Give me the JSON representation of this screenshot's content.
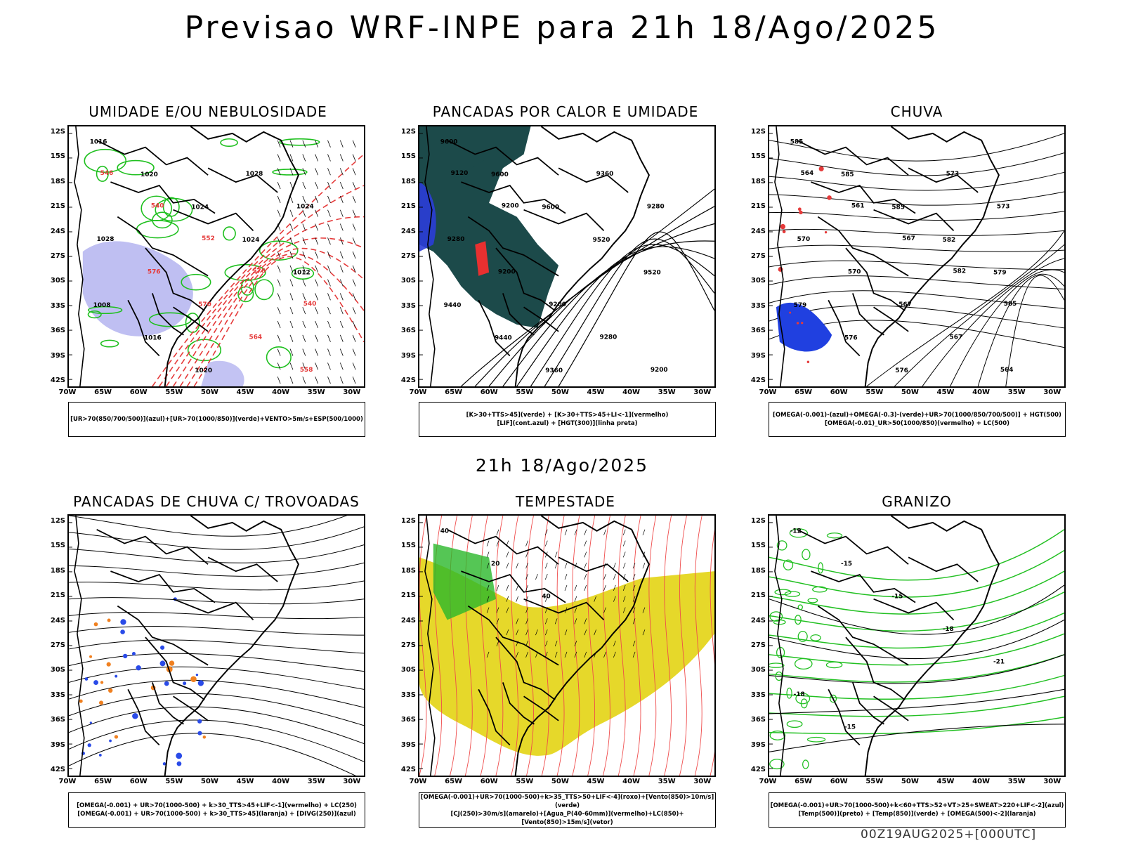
{
  "header": {
    "title": "Previsao WRF-INPE  para 21h 18/Ago/2025",
    "middle_time": "21h 18/Ago/2025",
    "run_info": "00Z19AUG2025+[000UTC]"
  },
  "axes": {
    "lat_ticks": [
      "12S",
      "15S",
      "18S",
      "21S",
      "24S",
      "27S",
      "30S",
      "33S",
      "36S",
      "39S",
      "42S"
    ],
    "lon_ticks": [
      "70W",
      "65W",
      "60W",
      "55W",
      "50W",
      "45W",
      "40W",
      "35W",
      "30W"
    ]
  },
  "panels": [
    {
      "title": "UMIDADE E/OU NEBULOSIDADE",
      "legend": [
        "[UR>70(850/700/500)](azul)+[UR>70(1000/850)](verde)+VENTO>5m/s+ESP(500/1000)"
      ],
      "contour_labels": [
        "1016",
        "1020",
        "1024",
        "1024",
        "1012",
        "1008",
        "1016",
        "1020",
        "1028",
        "1024",
        "1028",
        "576",
        "570",
        "564",
        "558",
        "546",
        "540",
        "552",
        "576",
        "540"
      ],
      "colors": {
        "humidity_upper": "#b4b4f0",
        "humidity_lower": "#1fc01f",
        "thickness": "#e53a3a"
      }
    },
    {
      "title": "PANCADAS POR CALOR E UMIDADE",
      "legend": [
        "[K>30+TTS>45](verde) + [K>30+TTS>45+LI<-1](vermelho)",
        "[LIF](cont.azul) + [HGT(300)](linha preta)"
      ],
      "contour_labels": [
        "9600",
        "9600",
        "9600",
        "9520",
        "9520",
        "9440",
        "9440",
        "9360",
        "9360",
        "9280",
        "9280",
        "9200",
        "9200",
        "9280",
        "9200",
        "9120",
        "9200"
      ],
      "colors": {
        "unstable": "#1c4a4a",
        "unstable_li": "#e83030",
        "lifted": "#2b3dd8"
      }
    },
    {
      "title": "CHUVA",
      "legend": [
        "[OMEGA(-0.001)-(azul)+OMEGA(-0.3)-(verde)+UR>70(1000/850/700/500)] + HGT(500)",
        "[OMEGA(-0.01)_UR>50(1000/850)(vermelho) + LC(500)"
      ],
      "contour_labels": [
        "585",
        "585",
        "585",
        "582",
        "579",
        "579",
        "576",
        "576",
        "573",
        "573",
        "570",
        "570",
        "567",
        "567",
        "564",
        "564",
        "561",
        "567",
        "582",
        "585"
      ],
      "colors": {
        "omega": "#2040e0",
        "rain": "#e53a3a"
      }
    },
    {
      "title": "PANCADAS DE CHUVA C/ TROVOADAS",
      "legend": [
        "[OMEGA(-0.001) + UR>70(1000-500) + k>30_TTS>45+LIF<-1](vermelho) + LC(250)",
        "[OMEGA(-0.001) + UR>70(1000-500) + k>30_TTS>45](laranja) + [DIVG(250)](azul)"
      ],
      "contour_labels": [],
      "colors": {
        "divergence": "#2a4be8",
        "orange": "#f08020"
      }
    },
    {
      "title": "TEMPESTADE",
      "legend": [
        "[OMEGA(-0.001)+UR>70(1000-500)+k>35_TTS>50+LIF<-4](roxo)+[Vento(850)>10m/s](verde)",
        "[CJ(250)>30m/s](amarelo)+[Agua_P(40-60mm)](vermelho)+LC(850)+[Vento(850)>15m/s](vetor)"
      ],
      "contour_labels": [
        "40",
        "20",
        "40"
      ],
      "colors": {
        "jet": "#e6d82a",
        "water": "#ef4b4b",
        "wind": "#2bb82b"
      }
    },
    {
      "title": "GRANIZO",
      "legend": [
        "[OMEGA(-0.001)+UR>70(1000-500)+k<60+TTS>52+VT>25+SWEAT>220+LIF<-2](azul)",
        "[Temp(500)](preto) + [Temp(850)](verde) + [OMEGA(500)<-2](laranja)"
      ],
      "contour_labels": [
        "-12",
        "-15",
        "-15",
        "-18",
        "-21",
        "-18",
        "-15"
      ],
      "colors": {
        "temp850": "#22c022",
        "temp500": "#000000"
      }
    }
  ]
}
